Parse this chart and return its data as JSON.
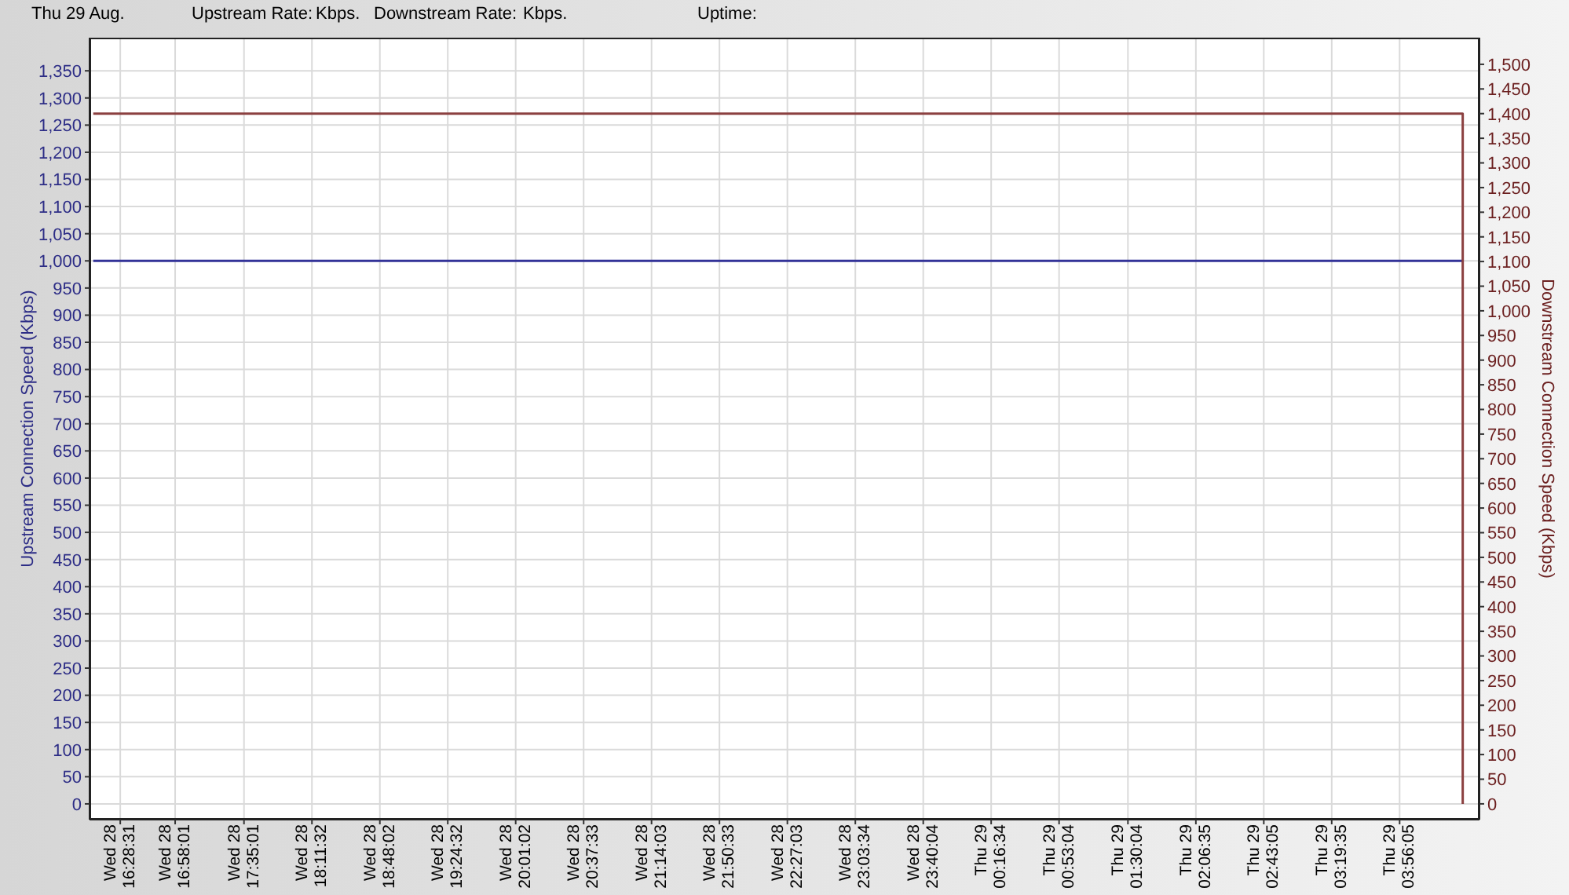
{
  "chart_data": {
    "type": "line",
    "annotations": [
      "Thu 29 Aug.",
      "Upstream Rate:",
      "Kbps.",
      "Downstream Rate:",
      "Kbps.",
      "Uptime:"
    ],
    "ylabel": "Upstream Connection Speed (Kbps)",
    "y2label": "Downstream Connection Speed (Kbps)",
    "xlim": [
      "--08-28T16:12",
      "--08-29T04:39"
    ],
    "xticks": [
      {
        "value": "--08-28T16:28:31",
        "label": "Wed 28\n16:28:31"
      },
      {
        "value": "--08-28T16:58:01",
        "label": "Wed 28\n16:58:01"
      },
      {
        "value": "--08-28T17:35:01",
        "label": "Wed 28\n17:35:01"
      },
      {
        "value": "--08-28T18:11:32",
        "label": "Wed 28\n18:11:32"
      },
      {
        "value": "--08-28T18:48:02",
        "label": "Wed 28\n18:48:02"
      },
      {
        "value": "--08-28T19:24:32",
        "label": "Wed 28\n19:24:32"
      },
      {
        "value": "--08-28T20:01:02",
        "label": "Wed 28\n20:01:02"
      },
      {
        "value": "--08-28T20:37:33",
        "label": "Wed 28\n20:37:33"
      },
      {
        "value": "--08-28T21:14:03",
        "label": "Wed 28\n21:14:03"
      },
      {
        "value": "--08-28T21:50:33",
        "label": "Wed 28\n21:50:33"
      },
      {
        "value": "--08-28T22:27:03",
        "label": "Wed 28\n22:27:03"
      },
      {
        "value": "--08-28T23:03:34",
        "label": "Wed 28\n23:03:34"
      },
      {
        "value": "--08-28T23:40:04",
        "label": "Wed 28\n23:40:04"
      },
      {
        "value": "--08-29T00:16:34",
        "label": "Thu 29\n00:16:34"
      },
      {
        "value": "--08-29T00:53:04",
        "label": "Thu 29\n00:53:04"
      },
      {
        "value": "--08-29T01:30:04",
        "label": "Thu 29\n01:30:04"
      },
      {
        "value": "--08-29T02:06:35",
        "label": "Thu 29\n02:06:35"
      },
      {
        "value": "--08-29T02:43:05",
        "label": "Thu 29\n02:43:05"
      },
      {
        "value": "--08-29T03:19:35",
        "label": "Thu 29\n03:19:35"
      },
      {
        "value": "--08-29T03:56:05",
        "label": "Thu 29\n03:56:05"
      }
    ],
    "ylim": [
      -29,
      1411
    ],
    "yticks": [
      0,
      50,
      100,
      150,
      200,
      250,
      300,
      350,
      400,
      450,
      500,
      550,
      600,
      650,
      700,
      750,
      800,
      850,
      900,
      950,
      {
        "value": 1000,
        "label": "1,000"
      },
      {
        "value": 1050,
        "label": "1,050"
      },
      {
        "value": 1100,
        "label": "1,100"
      },
      {
        "value": 1150,
        "label": "1,150"
      },
      {
        "value": 1200,
        "label": "1,200"
      },
      {
        "value": 1250,
        "label": "1,250"
      },
      {
        "value": 1300,
        "label": "1,300"
      },
      {
        "value": 1350,
        "label": "1,350"
      }
    ],
    "y2lim": [
      -32,
      1554
    ],
    "y2ticks": [
      0,
      50,
      100,
      150,
      200,
      250,
      300,
      350,
      400,
      450,
      500,
      550,
      600,
      650,
      700,
      750,
      800,
      850,
      900,
      950,
      {
        "value": 1000,
        "label": "1,000"
      },
      {
        "value": 1050,
        "label": "1,050"
      },
      {
        "value": 1100,
        "label": "1,100"
      },
      {
        "value": 1150,
        "label": "1,150"
      },
      {
        "value": 1200,
        "label": "1,200"
      },
      {
        "value": 1250,
        "label": "1,250"
      },
      {
        "value": 1300,
        "label": "1,300"
      },
      {
        "value": 1350,
        "label": "1,350"
      },
      {
        "value": 1400,
        "label": "1,400"
      },
      {
        "value": 1450,
        "label": "1,450"
      },
      {
        "value": 1500,
        "label": "1,500"
      }
    ],
    "series": [
      {
        "color": "#333399",
        "x": [
          "--08-28T16:14",
          "--08-29T04:30"
        ],
        "values": [
          1000,
          1000
        ]
      },
      {
        "color": "#8b4040",
        "axis": "y2",
        "x": [
          "--08-28T16:14",
          "--08-29T04:30",
          "--08-29T04:30"
        ],
        "values": [
          1400,
          1400,
          0
        ]
      }
    ],
    "grid": true,
    "line_style": "solid"
  }
}
